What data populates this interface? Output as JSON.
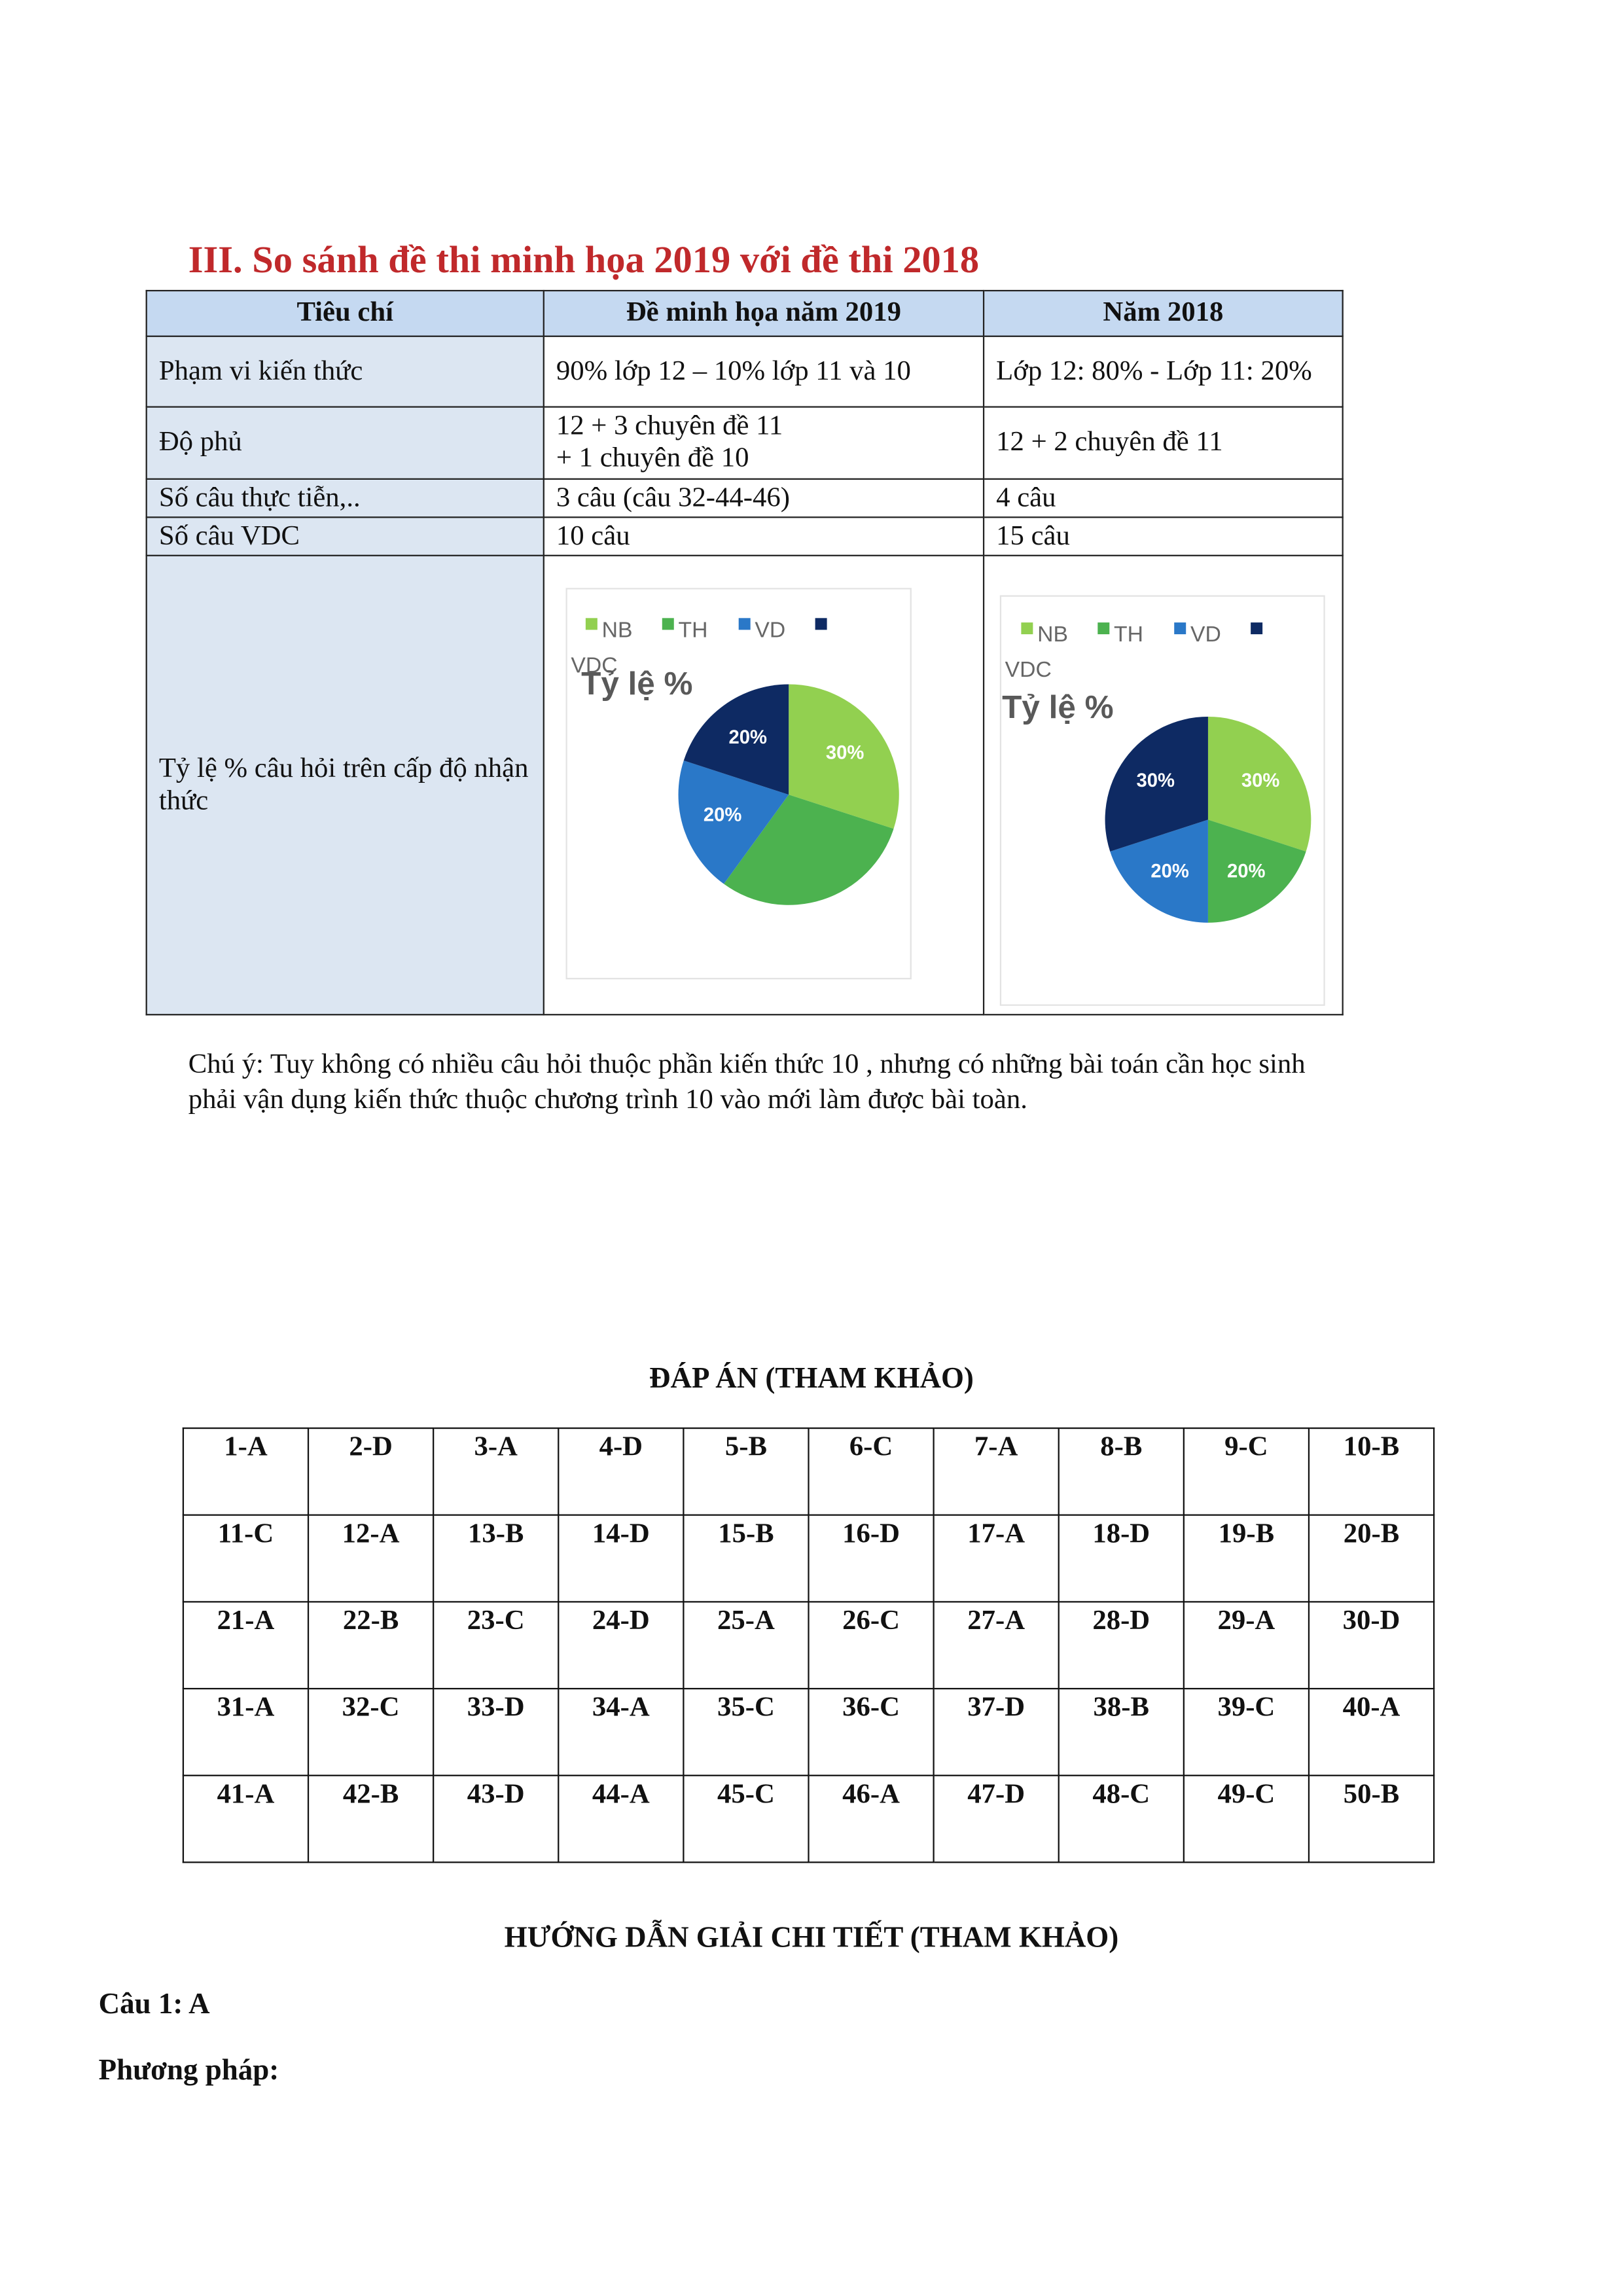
{
  "heading": "III. So sánh đề thi minh họa 2019 với đề thi 2018",
  "table": {
    "header": [
      "Tiêu chí",
      "Đề minh họa năm 2019",
      "Năm 2018"
    ],
    "rows": [
      [
        "Phạm vi kiến thức",
        "90% lớp 12 – 10% lớp 11 và 10",
        "Lớp 12: 80% - Lớp 11: 20%"
      ],
      [
        "Độ phủ",
        [
          "12 + 3 chuyên đề 11",
          "+ 1 chuyên đề 10"
        ],
        "12 + 2 chuyên đề 11"
      ],
      [
        "Số câu thực tiễn,..",
        "3 câu (câu 32-44-46)",
        "4 câu"
      ],
      [
        "Số câu VDC",
        "10 câu",
        "15 câu"
      ],
      [
        "Tỷ lệ % câu hỏi trên cấp độ nhận thức"
      ]
    ]
  },
  "chart_data": [
    {
      "type": "pie",
      "title": "Tỷ lệ %",
      "categories": [
        "NB",
        "TH",
        "VD",
        "VDC"
      ],
      "values": [
        30,
        30,
        20,
        20
      ],
      "value_labels": [
        "30%",
        null,
        "20%",
        "20%"
      ],
      "colors": [
        "#92d050",
        "#4cb24f",
        "#2a78c8",
        "#0e2a63"
      ]
    },
    {
      "type": "pie",
      "title": "Tỷ lệ %",
      "categories": [
        "NB",
        "TH",
        "VD",
        "VDC"
      ],
      "values": [
        30,
        20,
        20,
        30
      ],
      "value_labels": [
        "30%",
        "20%",
        "20%",
        "30%"
      ],
      "colors": [
        "#92d050",
        "#4cb24f",
        "#2a78c8",
        "#0e2a63"
      ]
    }
  ],
  "note": "Chú ý: Tuy không có nhiều câu hỏi thuộc phần kiến thức 10 , nhưng có những bài toán cần học sinh phải vận dụng kiến thức thuộc chương trình 10 vào mới làm được bài toàn.",
  "answers": {
    "title": "ĐÁP ÁN (THAM KHẢO)",
    "rows": [
      [
        "1-A",
        "2-D",
        "3-A",
        "4-D",
        "5-B",
        "6-C",
        "7-A",
        "8-B",
        "9-C",
        "10-B"
      ],
      [
        "11-C",
        "12-A",
        "13-B",
        "14-D",
        "15-B",
        "16-D",
        "17-A",
        "18-D",
        "19-B",
        "20-B"
      ],
      [
        "21-A",
        "22-B",
        "23-C",
        "24-D",
        "25-A",
        "26-C",
        "27-A",
        "28-D",
        "29-A",
        "30-D"
      ],
      [
        "31-A",
        "32-C",
        "33-D",
        "34-A",
        "35-C",
        "36-C",
        "37-D",
        "38-B",
        "39-C",
        "40-A"
      ],
      [
        "41-A",
        "42-B",
        "43-D",
        "44-A",
        "45-C",
        "46-A",
        "47-D",
        "48-C",
        "49-C",
        "50-B"
      ]
    ]
  },
  "solution": {
    "title": "HƯỚNG DẪN GIẢI CHI TIẾT (THAM KHẢO)",
    "question": "Câu 1: A",
    "method": "Phương pháp:"
  }
}
